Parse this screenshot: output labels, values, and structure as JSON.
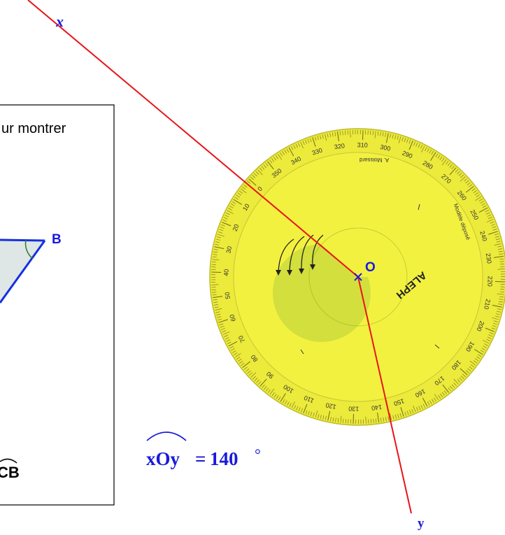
{
  "ray_x_label": "x",
  "ray_y_label": "y",
  "center_label": "O",
  "point_b_label": "B",
  "panel_text_fragment": "ur montrer",
  "panel_angle_fragment": "CB",
  "angle_measure": {
    "name": "xOy",
    "equals": "=",
    "value": "140",
    "unit": "°"
  },
  "protractor": {
    "brand": "ALEPH",
    "maker": "A. Moissard",
    "mode_text": "Modèle déposé",
    "outer_numbers": [
      "0",
      "10",
      "20",
      "30",
      "40",
      "50",
      "60",
      "70",
      "80",
      "90",
      "100",
      "110",
      "120",
      "130",
      "140",
      "150",
      "160",
      "170",
      "180",
      "190",
      "200",
      "210",
      "220",
      "230",
      "240",
      "250",
      "260",
      "270",
      "280",
      "290",
      "300",
      "310",
      "320",
      "330",
      "340",
      "350"
    ]
  },
  "colors": {
    "ray": "#e8141a",
    "label_blue": "#1a1adc",
    "protractor_face": "#f0ee3c",
    "protractor_rim": "#d9d63a",
    "panel_fill": "#dfe6e6",
    "panel_line": "#1530e0",
    "arc_green": "#2a7a2a"
  }
}
